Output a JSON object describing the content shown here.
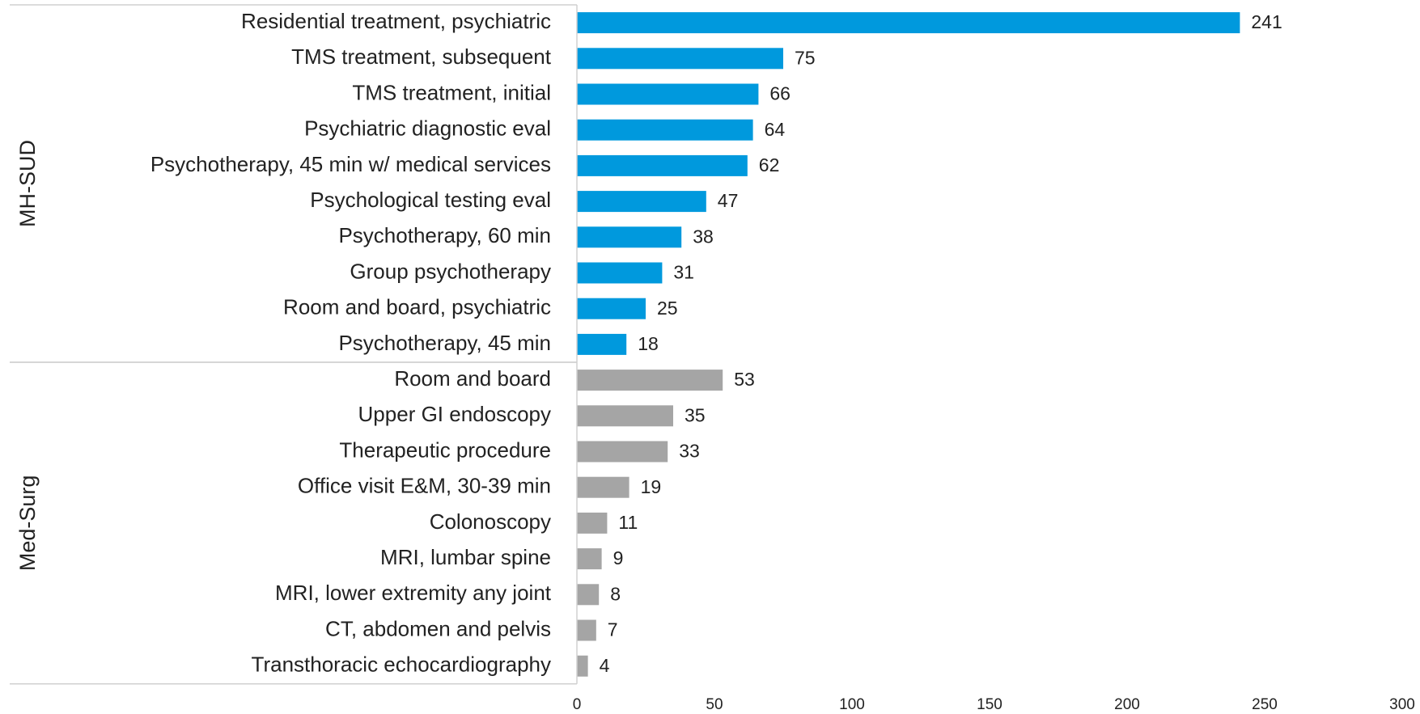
{
  "chart_data": {
    "type": "bar",
    "orientation": "horizontal",
    "series": [
      {
        "name": "MH-SUD",
        "color": "#0099dd",
        "categories": [
          "Residential treatment, psychiatric",
          "TMS treatment, subsequent",
          "TMS treatment, initial",
          "Psychiatric diagnostic eval",
          "Psychotherapy, 45 min w/ medical services",
          "Psychological testing eval",
          "Psychotherapy, 60 min",
          "Group psychotherapy",
          "Room and board, psychiatric",
          "Psychotherapy, 45 min"
        ],
        "values": [
          241,
          75,
          66,
          64,
          62,
          47,
          38,
          31,
          25,
          18
        ]
      },
      {
        "name": "Med-Surg",
        "color": "#a5a5a5",
        "categories": [
          "Room and board",
          "Upper GI endoscopy",
          "Therapeutic procedure",
          "Office visit E&M, 30-39 min",
          "Colonoscopy",
          "MRI, lumbar spine",
          "MRI, lower extremity any joint",
          "CT, abdomen and pelvis",
          "Transthoracic echocardiography"
        ],
        "values": [
          53,
          35,
          33,
          19,
          11,
          9,
          8,
          7,
          4
        ]
      }
    ],
    "xlim": [
      0,
      300
    ],
    "xticks": [
      0,
      50,
      100,
      150,
      200,
      250,
      300
    ]
  }
}
